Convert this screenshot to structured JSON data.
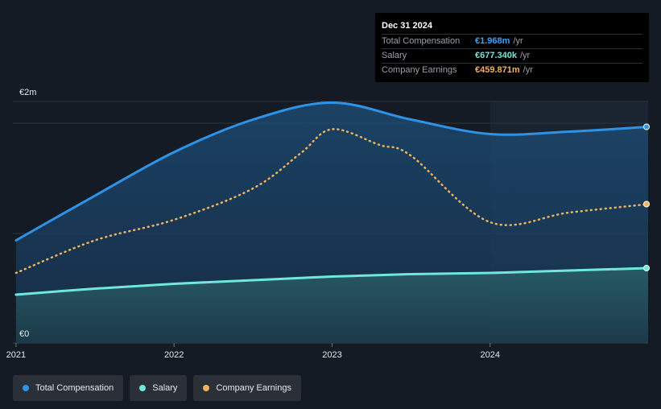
{
  "tooltip": {
    "date": "Dec 31 2024",
    "rows": [
      {
        "label": "Total Compensation",
        "value": "€1.968m",
        "unit": "/yr",
        "color": "#3ea3f2"
      },
      {
        "label": "Salary",
        "value": "€677.340k",
        "unit": "/yr",
        "color": "#6fe7db"
      },
      {
        "label": "Company Earnings",
        "value": "€459.871m",
        "unit": "/yr",
        "color": "#f0b35c"
      }
    ]
  },
  "legend": [
    {
      "label": "Total Compensation",
      "color": "#2e93e6"
    },
    {
      "label": "Salary",
      "color": "#6fe7db"
    },
    {
      "label": "Company Earnings",
      "color": "#f0b35c"
    }
  ],
  "chart_data": {
    "type": "area",
    "y_tick_labels": [
      {
        "value": 0,
        "label": "€0"
      },
      {
        "value": 2,
        "label": "€2m"
      }
    ],
    "x_tick_labels": [
      {
        "value": 2021,
        "label": "2021"
      },
      {
        "value": 2022,
        "label": "2022"
      },
      {
        "value": 2023,
        "label": "2023"
      },
      {
        "value": 2024,
        "label": "2024"
      }
    ],
    "xlim": [
      2020.98,
      2025.0
    ],
    "ylim": [
      0,
      2.0
    ],
    "highlight_from": 2024.0,
    "series": [
      {
        "name": "Total Compensation",
        "color": "#2e93e6",
        "style": "solid-area",
        "points": [
          [
            2021.0,
            0.85
          ],
          [
            2021.5,
            1.22
          ],
          [
            2022.0,
            1.58
          ],
          [
            2022.5,
            1.85
          ],
          [
            2023.0,
            1.99
          ],
          [
            2023.5,
            1.85
          ],
          [
            2024.0,
            1.73
          ],
          [
            2024.5,
            1.75
          ],
          [
            2025.0,
            1.79
          ]
        ]
      },
      {
        "name": "Company Earnings",
        "color": "#f0b35c",
        "style": "dotted",
        "points": [
          [
            2021.0,
            0.58
          ],
          [
            2021.5,
            0.85
          ],
          [
            2022.0,
            1.02
          ],
          [
            2022.5,
            1.28
          ],
          [
            2022.8,
            1.57
          ],
          [
            2023.0,
            1.77
          ],
          [
            2023.3,
            1.64
          ],
          [
            2023.5,
            1.55
          ],
          [
            2024.0,
            1.0
          ],
          [
            2024.5,
            1.08
          ],
          [
            2025.0,
            1.15
          ]
        ]
      },
      {
        "name": "Salary",
        "color": "#6fe7db",
        "style": "solid-area",
        "points": [
          [
            2021.0,
            0.4
          ],
          [
            2021.5,
            0.45
          ],
          [
            2022.0,
            0.49
          ],
          [
            2022.5,
            0.52
          ],
          [
            2023.0,
            0.55
          ],
          [
            2023.5,
            0.57
          ],
          [
            2024.0,
            0.58
          ],
          [
            2024.5,
            0.6
          ],
          [
            2025.0,
            0.62
          ]
        ]
      }
    ]
  }
}
